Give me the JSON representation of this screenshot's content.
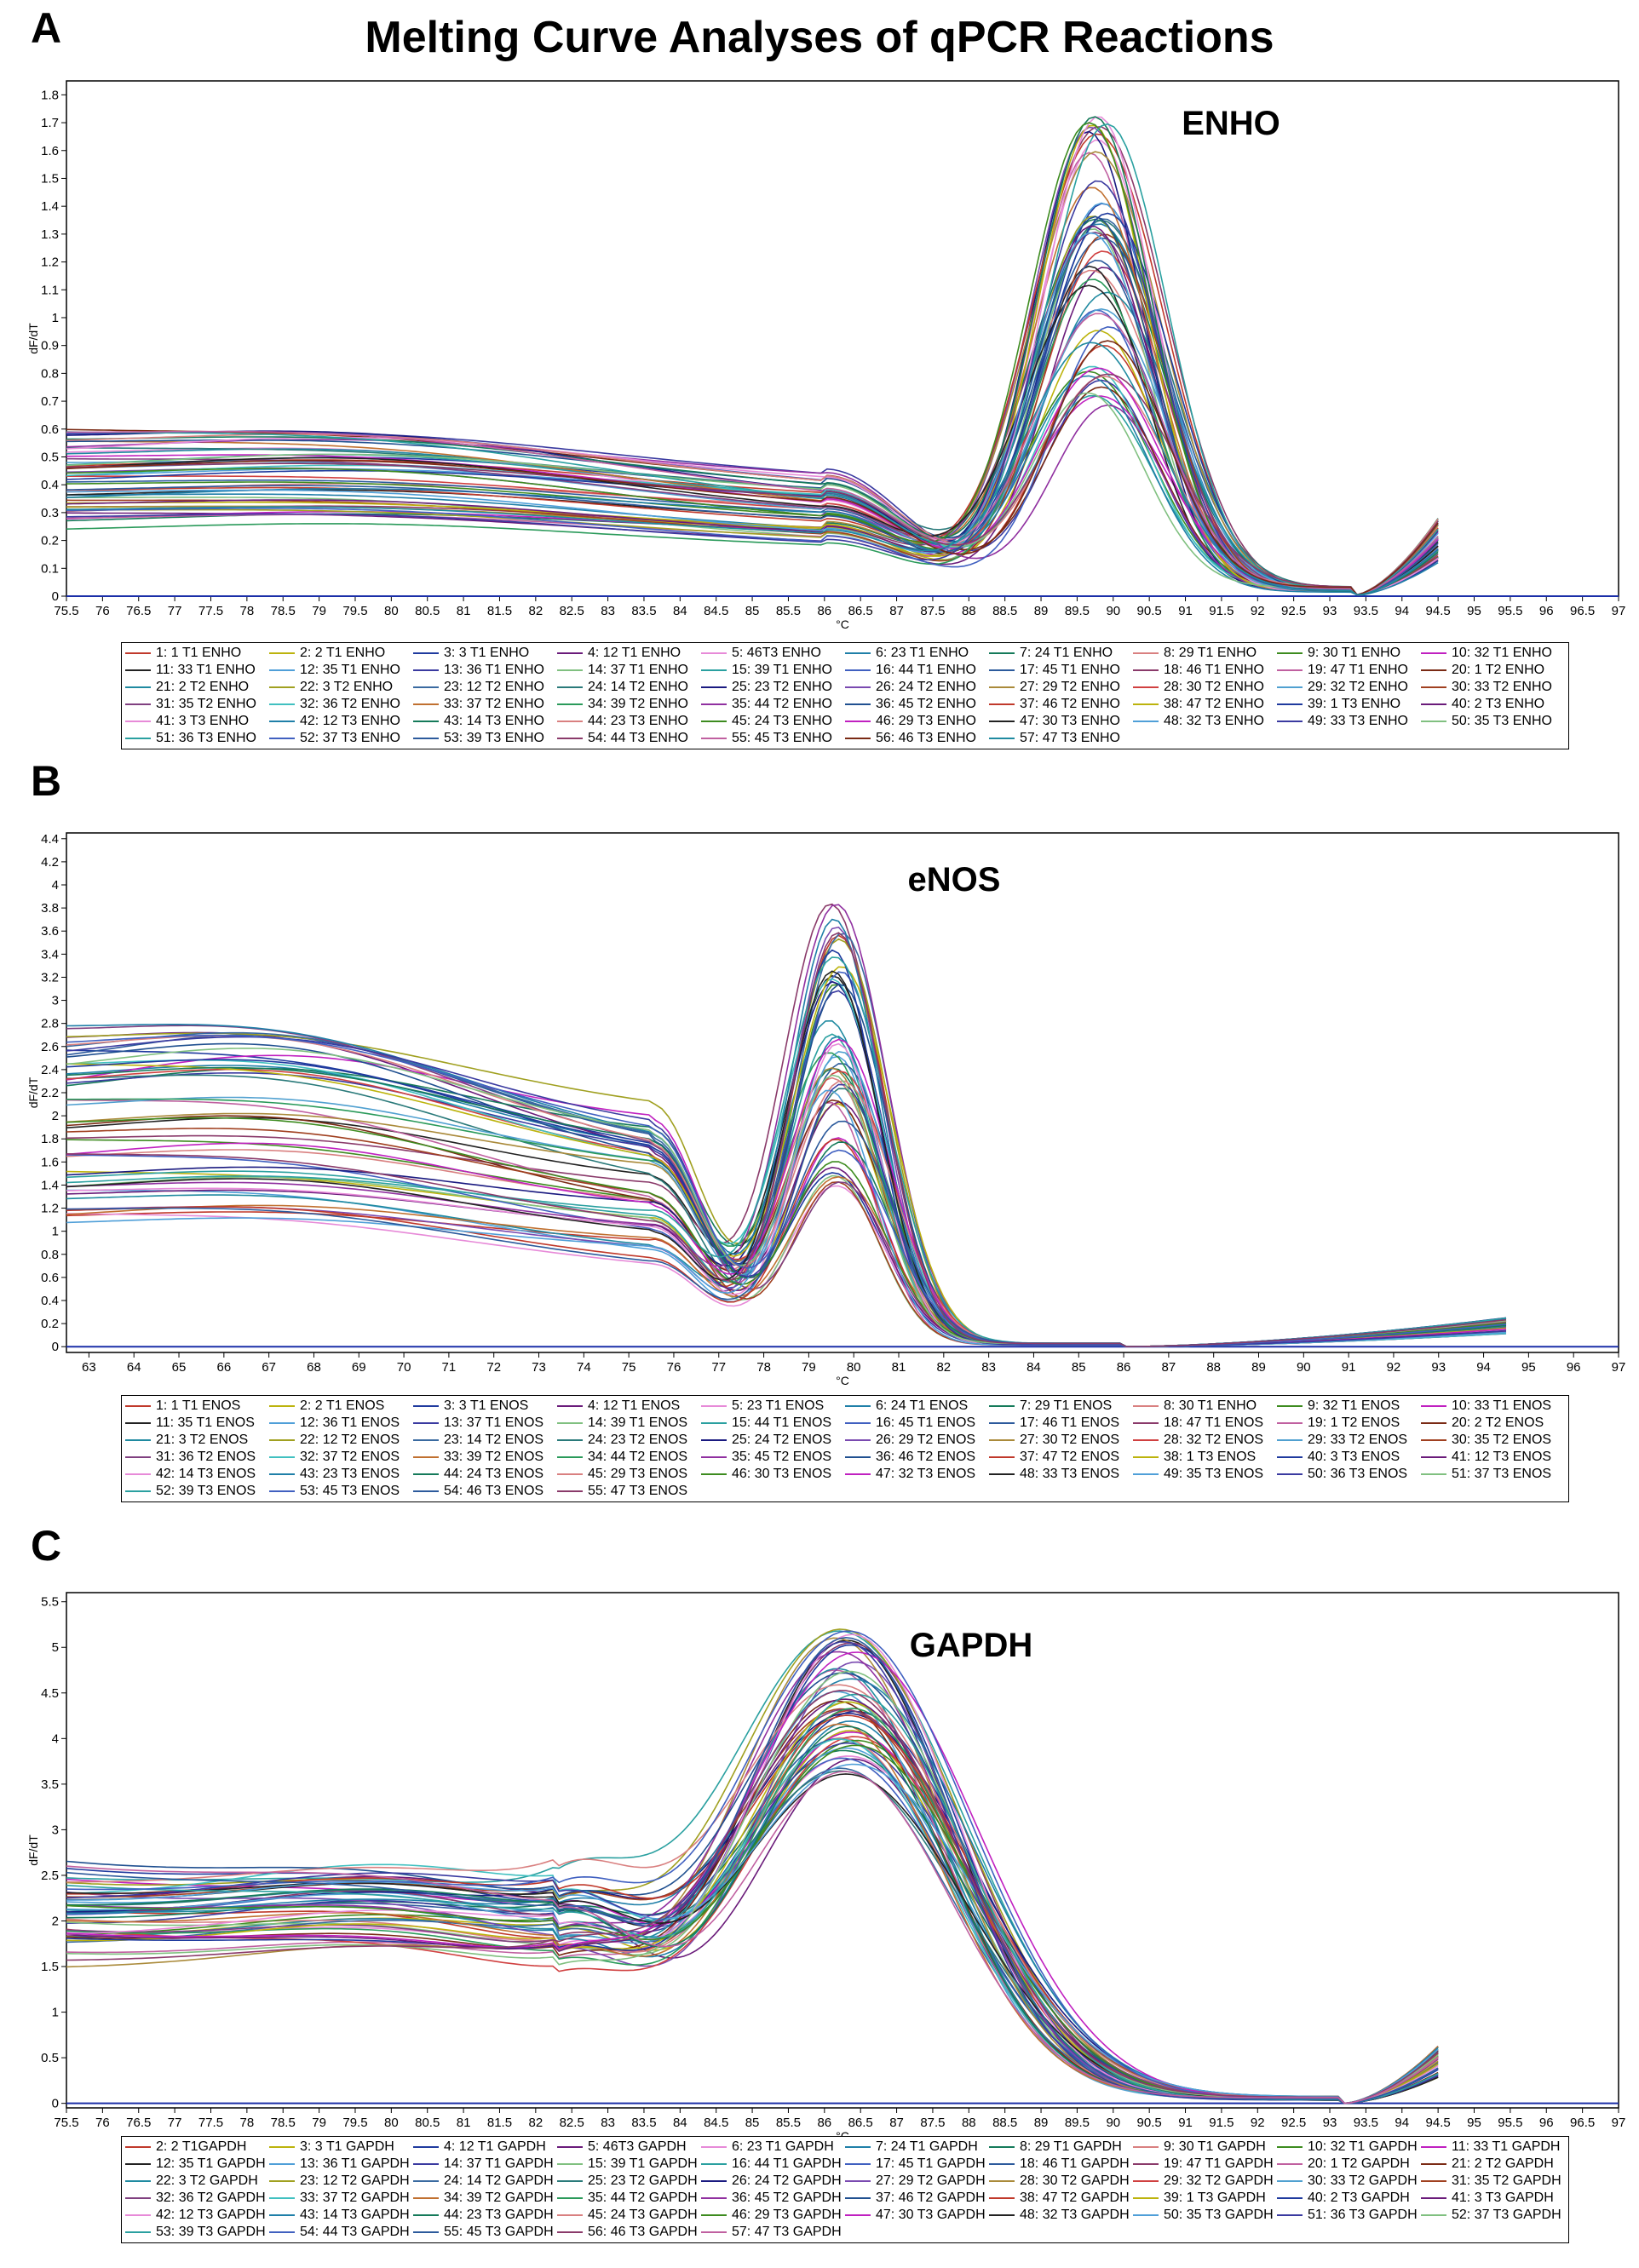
{
  "figure_title": "Melting Curve Analyses of qPCR Reactions",
  "palette": [
    "#c0392b",
    "#bcb30c",
    "#1f3a9e",
    "#6a1b7a",
    "#e78ad8",
    "#1f7fa8",
    "#157a5a",
    "#d98080",
    "#3d8b1f",
    "#c020c0",
    "#222222",
    "#4f9fd8",
    "#3a3aa0",
    "#80c080",
    "#2aa0a0",
    "#4060c0",
    "#2c5a9c",
    "#8a3a6a",
    "#c060a0",
    "#7a2a14",
    "#1f8aa0",
    "#a0a020",
    "#3a6aa0",
    "#2a7a7a",
    "#1a1a80",
    "#7a4ab0",
    "#aa8a3a",
    "#d04040",
    "#50a0d0",
    "#a04020",
    "#804080",
    "#40c0c0",
    "#c07030",
    "#2a9a5a",
    "#9030a0",
    "#205090"
  ],
  "chart_data": [
    {
      "id": "A",
      "type": "line",
      "panel_label": "A",
      "title": "ENHO",
      "xlabel": "°C",
      "ylabel": "dF/dT",
      "xlim": [
        75.5,
        97
      ],
      "ylim": [
        0,
        1.85
      ],
      "x_ticks": [
        "75.5",
        "76",
        "76.5",
        "77",
        "77.5",
        "78",
        "78.5",
        "79",
        "79.5",
        "80",
        "80.5",
        "81",
        "81.5",
        "82",
        "82.5",
        "83",
        "83.5",
        "84",
        "84.5",
        "85",
        "85.5",
        "86",
        "86.5",
        "87",
        "87.5",
        "88",
        "88.5",
        "89",
        "89.5",
        "90",
        "90.5",
        "91",
        "91.5",
        "92",
        "92.5",
        "93",
        "93.5",
        "94",
        "94.5",
        "95",
        "95.5",
        "96",
        "96.5",
        "97"
      ],
      "y_ticks": [
        "0",
        "0.1",
        "0.2",
        "0.3",
        "0.4",
        "0.5",
        "0.6",
        "0.7",
        "0.8",
        "0.9",
        "1",
        "1.1",
        "1.2",
        "1.3",
        "1.4",
        "1.5",
        "1.6",
        "1.7",
        "1.8"
      ],
      "curve_shape": {
        "x_end": 94.5,
        "shoulder_x": 79.8,
        "shoulder_width": 4.5,
        "valley_x": 86.0,
        "peak_x": 89.8,
        "peak_width": 1.2,
        "min_x": 93.3,
        "end_value": 0.2,
        "shoulder_range": [
          0.26,
          0.58
        ],
        "peak_range": [
          0.66,
          1.72
        ],
        "valley_ratio": 0.7
      },
      "legend": [
        "1: 1 T1 ENHO",
        "2: 2 T1 ENHO",
        "3: 3 T1 ENHO",
        "4: 12 T1 ENHO",
        "5: 46T3 ENHO",
        "6: 23 T1 ENHO",
        "7: 24 T1 ENHO",
        "8: 29 T1 ENHO",
        "9: 30 T1 ENHO",
        "10: 32 T1 ENHO",
        "11: 33 T1 ENHO",
        "12: 35 T1 ENHO",
        "13: 36 T1 ENHO",
        "14: 37 T1 ENHO",
        "15: 39 T1 ENHO",
        "16: 44 T1 ENHO",
        "17: 45 T1 ENHO",
        "18: 46 T1 ENHO",
        "19: 47 T1 ENHO",
        "20: 1 T2 ENHO",
        "21: 2 T2 ENHO",
        "22: 3 T2 ENHO",
        "23: 12 T2 ENHO",
        "24: 14 T2 ENHO",
        "25: 23 T2 ENHO",
        "26: 24 T2 ENHO",
        "27: 29 T2 ENHO",
        "28: 30 T2 ENHO",
        "29: 32 T2 ENHO",
        "30: 33 T2 ENHO",
        "31: 35 T2 ENHO",
        "32: 36 T2 ENHO",
        "33: 37 T2 ENHO",
        "34: 39 T2 ENHO",
        "35: 44 T2 ENHO",
        "36: 45 T2 ENHO",
        "37: 46 T2 ENHO",
        "38: 47 T2 ENHO",
        "39: 1 T3 ENHO",
        "40: 2 T3 ENHO",
        "41: 3 T3 ENHO",
        "42: 12 T3 ENHO",
        "43: 14 T3 ENHO",
        "44: 23 T3 ENHO",
        "45: 24 T3 ENHO",
        "46: 29 T3 ENHO",
        "47: 30 T3 ENHO",
        "48: 32 T3 ENHO",
        "49: 33 T3 ENHO",
        "50: 35 T3 ENHO",
        "51: 36 T3 ENHO",
        "52: 37 T3 ENHO",
        "53: 39 T3 ENHO",
        "54: 44 T3 ENHO",
        "55: 45 T3 ENHO",
        "56: 46 T3 ENHO",
        "57: 47 T3 ENHO"
      ]
    },
    {
      "id": "B",
      "type": "line",
      "panel_label": "B",
      "title": "eNOS",
      "xlabel": "°C",
      "ylabel": "dF/dT",
      "xlim": [
        62.5,
        97
      ],
      "ylim": [
        -0.05,
        4.45
      ],
      "x_ticks": [
        "63",
        "64",
        "65",
        "66",
        "67",
        "68",
        "69",
        "70",
        "71",
        "72",
        "73",
        "74",
        "75",
        "76",
        "77",
        "78",
        "79",
        "80",
        "81",
        "82",
        "83",
        "84",
        "85",
        "86",
        "87",
        "88",
        "89",
        "90",
        "91",
        "92",
        "93",
        "94",
        "95",
        "96",
        "97"
      ],
      "y_ticks": [
        "0",
        "0.2",
        "0.4",
        "0.6",
        "0.8",
        "1",
        "1.2",
        "1.4",
        "1.6",
        "1.8",
        "2",
        "2.2",
        "2.4",
        "2.6",
        "2.8",
        "3",
        "3.2",
        "3.4",
        "3.6",
        "3.8",
        "4",
        "4.2",
        "4.4"
      ],
      "curve_shape": {
        "x_end": 94.5,
        "shoulder_x": 67.5,
        "shoulder_width": 5.5,
        "valley_x": 75.5,
        "peak_x": 79.6,
        "peak_width": 1.5,
        "min_x": 86.0,
        "end_value": 0.18,
        "shoulder_range": [
          1.0,
          2.7
        ],
        "peak_range": [
          1.35,
          4.0
        ],
        "valley_ratio": 0.72
      },
      "legend": [
        "1: 1 T1 ENOS",
        "2: 2 T1 ENOS",
        "3: 3 T1 ENOS",
        "4: 12 T1 ENOS",
        "5: 23 T1 ENOS",
        "6: 24 T1 ENOS",
        "7: 29 T1 ENOS",
        "8: 30 T1 ENHO",
        "9: 32 T1 ENOS",
        "10: 33 T1 ENOS",
        "11: 35 T1 ENOS",
        "12: 36 T1 ENOS",
        "13: 37 T1 ENOS",
        "14: 39 T1 ENOS",
        "15: 44 T1 ENOS",
        "16: 45 T1 ENOS",
        "17: 46 T1 ENOS",
        "18: 47 T1 ENOS",
        "19: 1 T2 ENOS",
        "20: 2 T2 ENOS",
        "21: 3 T2 ENOS",
        "22: 12 T2 ENOS",
        "23: 14 T2 ENOS",
        "24: 23 T2 ENOS",
        "25: 24 T2 ENOS",
        "26: 29 T2 ENOS",
        "27: 30 T2 ENOS",
        "28: 32 T2 ENOS",
        "29: 33 T2 ENOS",
        "30: 35 T2 ENOS",
        "31: 36 T2 ENOS",
        "32: 37 T2 ENOS",
        "33: 39 T2 ENOS",
        "34: 44 T2 ENOS",
        "35: 45 T2 ENOS",
        "36: 46 T2 ENOS",
        "37: 47 T2 ENOS",
        "38: 1 T3 ENOS",
        "40: 3 T3 ENOS",
        "41: 12 T3 ENOS",
        "42: 14 T3 ENOS",
        "43: 23 T3 ENOS",
        "44: 24 T3 ENOS",
        "45: 29 T3 ENOS",
        "46: 30 T3 ENOS",
        "47: 32 T3 ENOS",
        "48: 33 T3 ENOS",
        "49: 35 T3 ENOS",
        "50: 36 T3 ENOS",
        "51: 37 T3 ENOS",
        "52: 39 T3 ENOS",
        "53: 45 T3 ENOS",
        "54: 46 T3 ENOS",
        "55: 47 T3 ENOS"
      ]
    },
    {
      "id": "C",
      "type": "line",
      "panel_label": "C",
      "title": "GAPDH",
      "xlabel": "°C",
      "ylabel": "dF/dT",
      "xlim": [
        75.5,
        97
      ],
      "ylim": [
        -0.05,
        5.6
      ],
      "x_ticks": [
        "75.5",
        "76",
        "76.5",
        "77",
        "77.5",
        "78",
        "78.5",
        "79",
        "79.5",
        "80",
        "80.5",
        "81",
        "81.5",
        "82",
        "82.5",
        "83",
        "83.5",
        "84",
        "84.5",
        "85",
        "85.5",
        "86",
        "86.5",
        "87",
        "87.5",
        "88",
        "88.5",
        "89",
        "89.5",
        "90",
        "90.5",
        "91",
        "91.5",
        "92",
        "92.5",
        "93",
        "93.5",
        "94",
        "94.5",
        "95",
        "95.5",
        "96",
        "96.5",
        "97"
      ],
      "y_ticks": [
        "0",
        "0.5",
        "1",
        "1.5",
        "2",
        "2.5",
        "3",
        "3.5",
        "4",
        "4.5",
        "5",
        "5.5"
      ],
      "curve_shape": {
        "x_end": 94.5,
        "shoulder_x": 80.0,
        "shoulder_width": 2.8,
        "valley_x": 82.3,
        "peak_x": 86.3,
        "peak_width": 2.2,
        "min_x": 93.2,
        "end_value": 0.45,
        "shoulder_range": [
          1.75,
          2.7
        ],
        "peak_range": [
          3.55,
          5.15
        ],
        "valley_ratio": 0.78
      },
      "legend": [
        "2: 2 T1GAPDH",
        "3: 3 T1 GAPDH",
        "4: 12 T1 GAPDH",
        "5: 46T3 GAPDH",
        "6: 23 T1 GAPDH",
        "7: 24 T1 GAPDH",
        "8: 29 T1 GAPDH",
        "9: 30 T1 GAPDH",
        "10: 32 T1 GAPDH",
        "11: 33 T1 GAPDH",
        "12: 35 T1 GAPDH",
        "13: 36 T1 GAPDH",
        "14: 37 T1 GAPDH",
        "15: 39 T1 GAPDH",
        "16: 44 T1 GAPDH",
        "17: 45 T1 GAPDH",
        "18: 46 T1 GAPDH",
        "19: 47 T1 GAPDH",
        "20: 1 T2 GAPDH",
        "21: 2 T2 GAPDH",
        "22: 3 T2 GAPDH",
        "23: 12 T2 GAPDH",
        "24: 14 T2 GAPDH",
        "25: 23 T2 GAPDH",
        "26: 24 T2 GAPDH",
        "27: 29 T2 GAPDH",
        "28: 30 T2 GAPDH",
        "29: 32 T2 GAPDH",
        "30: 33 T2 GAPDH",
        "31: 35 T2 GAPDH",
        "32: 36 T2 GAPDH",
        "33: 37 T2 GAPDH",
        "34: 39 T2 GAPDH",
        "35: 44 T2 GAPDH",
        "36: 45 T2 GAPDH",
        "37: 46 T2 GAPDH",
        "38: 47 T2 GAPDH",
        "39: 1 T3 GAPDH",
        "40: 2 T3 GAPDH",
        "41: 3 T3 GAPDH",
        "42: 12 T3 GAPDH",
        "43: 14 T3 GAPDH",
        "44: 23 T3 GAPDH",
        "45: 24 T3 GAPDH",
        "46: 29 T3 GAPDH",
        "47: 30 T3 GAPDH",
        "48: 32 T3 GAPDH",
        "50: 35 T3 GAPDH",
        "51: 36 T3 GAPDH",
        "52: 37 T3 GAPDH",
        "53: 39 T3 GAPDH",
        "54: 44 T3 GAPDH",
        "55: 45 T3 GAPDH",
        "56: 46 T3 GAPDH",
        "57: 47 T3 GAPDH"
      ]
    }
  ]
}
